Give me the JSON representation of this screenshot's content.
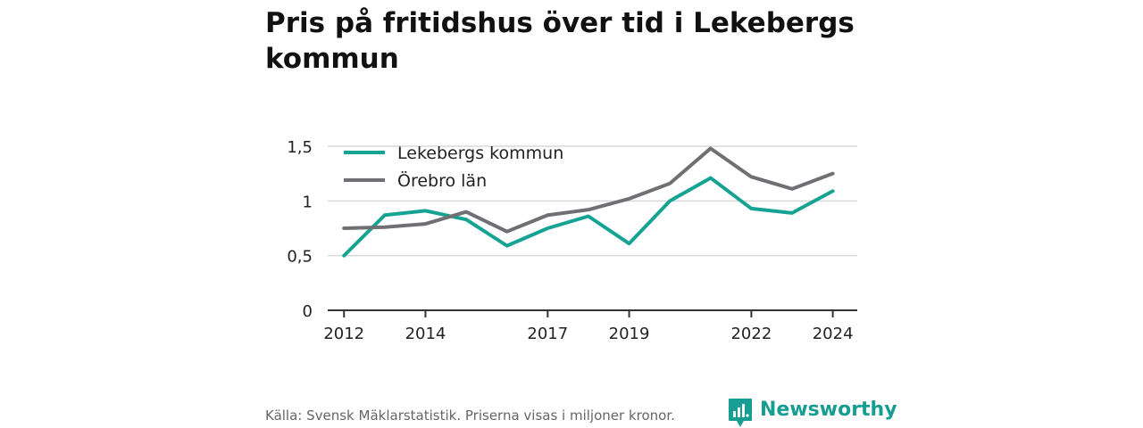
{
  "title": "Pris på fritidshus över tid i Lekebergs kommun",
  "source": "Källa: Svensk Mäklarstatistik. Priserna visas i miljoner kronor.",
  "brand": {
    "name": "Newsworthy",
    "icon": "newsworthy-logo-icon",
    "color": "#179e92"
  },
  "chart_data": {
    "type": "line",
    "title": "Pris på fritidshus över tid i Lekebergs kommun",
    "xlabel": "",
    "ylabel": "",
    "x": [
      2012,
      2013,
      2014,
      2015,
      2016,
      2017,
      2018,
      2019,
      2020,
      2021,
      2022,
      2023,
      2024
    ],
    "xlim": [
      2011.6,
      2024.6
    ],
    "ylim": [
      0,
      1.5
    ],
    "yticks": [
      0,
      0.5,
      1,
      1.5
    ],
    "ytick_labels": [
      "0",
      "0,5",
      "1",
      "1,5"
    ],
    "xticks": [
      2012,
      2014,
      2017,
      2019,
      2022,
      2024
    ],
    "xtick_labels": [
      "2012",
      "2014",
      "2017",
      "2019",
      "2022",
      "2024"
    ],
    "grid": true,
    "legend_position": "top-left",
    "series": [
      {
        "name": "Lekebergs kommun",
        "color": "#16a394",
        "values": [
          0.5,
          0.87,
          0.91,
          0.83,
          0.59,
          0.75,
          0.86,
          0.61,
          1.0,
          1.21,
          0.93,
          0.89,
          1.09
        ]
      },
      {
        "name": "Örebro län",
        "color": "#6f6f74",
        "values": [
          0.75,
          0.76,
          0.79,
          0.9,
          0.72,
          0.87,
          0.92,
          1.02,
          1.16,
          1.48,
          1.22,
          1.11,
          1.25
        ]
      }
    ]
  }
}
